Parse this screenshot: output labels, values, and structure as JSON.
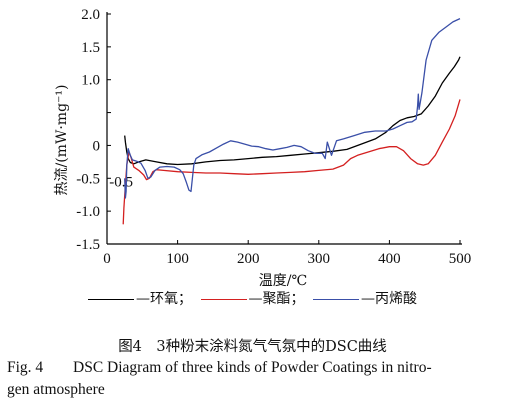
{
  "chart_data": {
    "type": "line",
    "title": "",
    "xlabel": "温度/℃",
    "ylabel": "热流/(mW·mg⁻¹)",
    "xlim": [
      0,
      500
    ],
    "ylim": [
      -1.5,
      2.0
    ],
    "x_ticks": [
      0,
      100,
      200,
      300,
      400,
      500
    ],
    "y_ticks": [
      2.0,
      1.5,
      1.0,
      0.5,
      0,
      -0.5,
      -1.0,
      -1.5
    ],
    "y_tick_labels": [
      "2.0",
      "1.5",
      "1.0",
      "",
      "0",
      "-0.5",
      "-1.0",
      "-1.5"
    ],
    "y_tick_label_extra": "-0.5",
    "grid": false,
    "series": [
      {
        "name": "—环氧",
        "color": "#000000",
        "points": [
          [
            25,
            0.15
          ],
          [
            26,
            0.05
          ],
          [
            28,
            -0.1
          ],
          [
            30,
            -0.2
          ],
          [
            33,
            -0.26
          ],
          [
            38,
            -0.28
          ],
          [
            45,
            -0.25
          ],
          [
            55,
            -0.22
          ],
          [
            70,
            -0.25
          ],
          [
            85,
            -0.28
          ],
          [
            100,
            -0.29
          ],
          [
            120,
            -0.28
          ],
          [
            140,
            -0.25
          ],
          [
            160,
            -0.23
          ],
          [
            180,
            -0.22
          ],
          [
            200,
            -0.2
          ],
          [
            220,
            -0.18
          ],
          [
            240,
            -0.17
          ],
          [
            260,
            -0.15
          ],
          [
            280,
            -0.13
          ],
          [
            300,
            -0.11
          ],
          [
            320,
            -0.09
          ],
          [
            340,
            -0.06
          ],
          [
            360,
            0.02
          ],
          [
            380,
            0.1
          ],
          [
            395,
            0.2
          ],
          [
            405,
            0.3
          ],
          [
            415,
            0.38
          ],
          [
            425,
            0.42
          ],
          [
            435,
            0.44
          ],
          [
            445,
            0.48
          ],
          [
            455,
            0.6
          ],
          [
            465,
            0.75
          ],
          [
            475,
            0.95
          ],
          [
            485,
            1.1
          ],
          [
            492,
            1.2
          ],
          [
            498,
            1.3
          ],
          [
            500,
            1.35
          ]
        ]
      },
      {
        "name": "—聚酯",
        "color": "#d42020",
        "points": [
          [
            23,
            -1.2
          ],
          [
            24,
            -0.95
          ],
          [
            26,
            -0.6
          ],
          [
            28,
            -0.3
          ],
          [
            31,
            -0.1
          ],
          [
            34,
            -0.18
          ],
          [
            38,
            -0.33
          ],
          [
            45,
            -0.38
          ],
          [
            52,
            -0.45
          ],
          [
            56,
            -0.52
          ],
          [
            60,
            -0.5
          ],
          [
            65,
            -0.4
          ],
          [
            70,
            -0.37
          ],
          [
            80,
            -0.38
          ],
          [
            100,
            -0.4
          ],
          [
            120,
            -0.41
          ],
          [
            140,
            -0.42
          ],
          [
            160,
            -0.42
          ],
          [
            180,
            -0.43
          ],
          [
            200,
            -0.44
          ],
          [
            220,
            -0.43
          ],
          [
            240,
            -0.42
          ],
          [
            260,
            -0.41
          ],
          [
            280,
            -0.4
          ],
          [
            300,
            -0.38
          ],
          [
            320,
            -0.36
          ],
          [
            335,
            -0.3
          ],
          [
            345,
            -0.2
          ],
          [
            355,
            -0.15
          ],
          [
            370,
            -0.1
          ],
          [
            385,
            -0.05
          ],
          [
            400,
            -0.02
          ],
          [
            410,
            -0.02
          ],
          [
            420,
            -0.08
          ],
          [
            430,
            -0.2
          ],
          [
            440,
            -0.28
          ],
          [
            448,
            -0.3
          ],
          [
            455,
            -0.28
          ],
          [
            465,
            -0.15
          ],
          [
            475,
            0.05
          ],
          [
            485,
            0.25
          ],
          [
            493,
            0.45
          ],
          [
            500,
            0.7
          ]
        ]
      },
      {
        "name": "—丙烯酸",
        "color": "#3a4fa8",
        "points": [
          [
            25,
            -0.5
          ],
          [
            26,
            -0.8
          ],
          [
            27,
            -0.7
          ],
          [
            28,
            -0.3
          ],
          [
            30,
            -0.05
          ],
          [
            33,
            -0.15
          ],
          [
            36,
            -0.22
          ],
          [
            42,
            -0.24
          ],
          [
            48,
            -0.27
          ],
          [
            54,
            -0.38
          ],
          [
            58,
            -0.5
          ],
          [
            62,
            -0.48
          ],
          [
            68,
            -0.38
          ],
          [
            75,
            -0.33
          ],
          [
            85,
            -0.32
          ],
          [
            95,
            -0.33
          ],
          [
            103,
            -0.37
          ],
          [
            108,
            -0.43
          ],
          [
            112,
            -0.55
          ],
          [
            116,
            -0.68
          ],
          [
            119,
            -0.7
          ],
          [
            121,
            -0.5
          ],
          [
            123,
            -0.3
          ],
          [
            126,
            -0.2
          ],
          [
            135,
            -0.14
          ],
          [
            145,
            -0.1
          ],
          [
            155,
            -0.04
          ],
          [
            165,
            0.02
          ],
          [
            175,
            0.07
          ],
          [
            185,
            0.05
          ],
          [
            195,
            0.02
          ],
          [
            205,
            -0.01
          ],
          [
            215,
            -0.02
          ],
          [
            225,
            -0.05
          ],
          [
            235,
            -0.07
          ],
          [
            245,
            -0.05
          ],
          [
            255,
            -0.03
          ],
          [
            265,
            0.0
          ],
          [
            275,
            -0.02
          ],
          [
            285,
            -0.08
          ],
          [
            295,
            -0.12
          ],
          [
            305,
            -0.12
          ],
          [
            309,
            -0.2
          ],
          [
            312,
            0.05
          ],
          [
            315,
            -0.05
          ],
          [
            318,
            -0.15
          ],
          [
            325,
            0.07
          ],
          [
            335,
            0.1
          ],
          [
            350,
            0.15
          ],
          [
            365,
            0.2
          ],
          [
            380,
            0.22
          ],
          [
            395,
            0.22
          ],
          [
            405,
            0.25
          ],
          [
            415,
            0.3
          ],
          [
            425,
            0.35
          ],
          [
            432,
            0.36
          ],
          [
            438,
            0.4
          ],
          [
            440,
            0.6
          ],
          [
            441,
            0.78
          ],
          [
            442,
            0.55
          ],
          [
            446,
            0.8
          ],
          [
            452,
            1.3
          ],
          [
            460,
            1.6
          ],
          [
            470,
            1.72
          ],
          [
            480,
            1.8
          ],
          [
            490,
            1.88
          ],
          [
            500,
            1.93
          ]
        ]
      }
    ],
    "legend_placement": "bottom",
    "legend_separator": "；"
  },
  "caption": {
    "chinese": "图4　3种粉末涂料氮气气氛中的DSC曲线",
    "fig_number": "Fig. 4",
    "english_line1": "DSC Diagram of three kinds of Powder Coatings in nitro-",
    "english_line2": "gen atmosphere"
  }
}
